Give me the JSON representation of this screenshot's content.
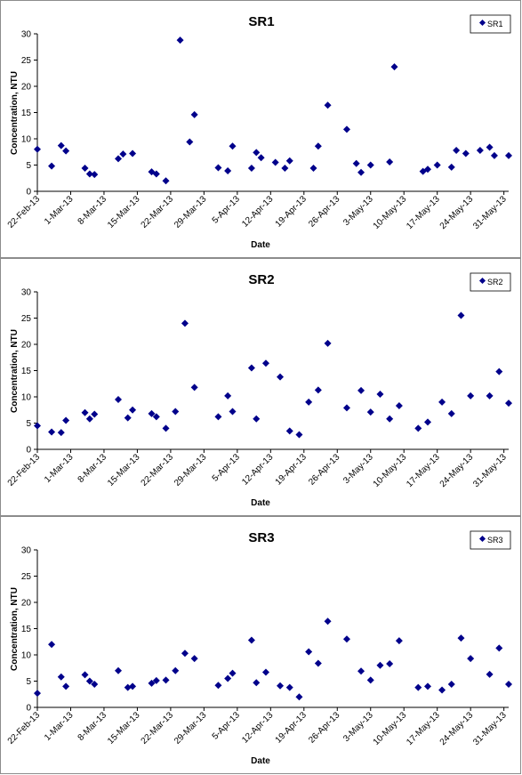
{
  "colors": {
    "marker": "#00008b",
    "axis": "#000000",
    "border": "#8c8c8c"
  },
  "chart_data": [
    {
      "type": "scatter",
      "title": "SR1",
      "xlabel": "Date",
      "ylabel": "Concentration, NTU",
      "ylim": [
        0,
        30
      ],
      "yticks": [
        "0",
        "5",
        "10",
        "15",
        "20",
        "25",
        "30"
      ],
      "xticks": [
        "22-Feb-13",
        "1-Mar-13",
        "8-Mar-13",
        "15-Mar-13",
        "22-Mar-13",
        "29-Mar-13",
        "5-Apr-13",
        "12-Apr-13",
        "19-Apr-13",
        "26-Apr-13",
        "3-May-13",
        "10-May-13",
        "17-May-13",
        "24-May-13",
        "31-May-13"
      ],
      "xlim": [
        "2013-02-22",
        "2013-06-01"
      ],
      "legend": "top-right",
      "grid": false,
      "series": [
        {
          "name": "SR1",
          "x": [
            "2013-02-22",
            "2013-02-25",
            "2013-02-27",
            "2013-02-28",
            "2013-03-04",
            "2013-03-05",
            "2013-03-06",
            "2013-03-11",
            "2013-03-12",
            "2013-03-14",
            "2013-03-18",
            "2013-03-19",
            "2013-03-21",
            "2013-03-24",
            "2013-03-26",
            "2013-03-27",
            "2013-04-01",
            "2013-04-03",
            "2013-04-04",
            "2013-04-08",
            "2013-04-09",
            "2013-04-10",
            "2013-04-13",
            "2013-04-15",
            "2013-04-16",
            "2013-04-21",
            "2013-04-22",
            "2013-04-24",
            "2013-04-28",
            "2013-04-30",
            "2013-05-01",
            "2013-05-03",
            "2013-05-07",
            "2013-05-08",
            "2013-05-14",
            "2013-05-15",
            "2013-05-17",
            "2013-05-20",
            "2013-05-21",
            "2013-05-23",
            "2013-05-26",
            "2013-05-28",
            "2013-05-29",
            "2013-06-01"
          ],
          "y": [
            8,
            4.8,
            8.7,
            7.7,
            4.4,
            3.3,
            3.2,
            6.2,
            7.1,
            7.2,
            3.7,
            3.3,
            2,
            28.8,
            9.4,
            14.6,
            4.5,
            3.9,
            8.6,
            4.4,
            7.4,
            6.4,
            5.5,
            4.4,
            5.8,
            4.4,
            8.6,
            16.4,
            11.8,
            5.3,
            3.6,
            5,
            5.6,
            23.7,
            3.8,
            4.2,
            5,
            4.6,
            7.8,
            7.2,
            7.8,
            8.4,
            6.8,
            6.8
          ]
        }
      ]
    },
    {
      "type": "scatter",
      "title": "SR2",
      "xlabel": "Date",
      "ylabel": "Concentration, NTU",
      "ylim": [
        0,
        30
      ],
      "yticks": [
        "0",
        "5",
        "10",
        "15",
        "20",
        "25",
        "30"
      ],
      "xticks": [
        "22-Feb-13",
        "1-Mar-13",
        "8-Mar-13",
        "15-Mar-13",
        "22-Mar-13",
        "29-Mar-13",
        "5-Apr-13",
        "12-Apr-13",
        "19-Apr-13",
        "26-Apr-13",
        "3-May-13",
        "10-May-13",
        "17-May-13",
        "24-May-13",
        "31-May-13"
      ],
      "xlim": [
        "2013-02-22",
        "2013-06-01"
      ],
      "legend": "top-right",
      "grid": false,
      "series": [
        {
          "name": "SR2",
          "x": [
            "2013-02-22",
            "2013-02-25",
            "2013-02-27",
            "2013-02-28",
            "2013-03-04",
            "2013-03-05",
            "2013-03-06",
            "2013-03-11",
            "2013-03-13",
            "2013-03-14",
            "2013-03-18",
            "2013-03-19",
            "2013-03-21",
            "2013-03-23",
            "2013-03-25",
            "2013-03-27",
            "2013-04-01",
            "2013-04-03",
            "2013-04-04",
            "2013-04-08",
            "2013-04-09",
            "2013-04-11",
            "2013-04-14",
            "2013-04-16",
            "2013-04-18",
            "2013-04-20",
            "2013-04-22",
            "2013-04-24",
            "2013-04-28",
            "2013-05-01",
            "2013-05-03",
            "2013-05-05",
            "2013-05-07",
            "2013-05-09",
            "2013-05-13",
            "2013-05-15",
            "2013-05-18",
            "2013-05-20",
            "2013-05-22",
            "2013-05-24",
            "2013-05-28",
            "2013-05-30",
            "2013-06-01"
          ],
          "y": [
            4.5,
            3.3,
            3.2,
            5.5,
            7,
            5.8,
            6.7,
            9.5,
            6,
            7.5,
            6.8,
            6.2,
            4,
            7.2,
            24,
            11.8,
            6.2,
            10.2,
            7.2,
            15.5,
            5.8,
            16.4,
            13.8,
            3.5,
            2.8,
            9,
            11.3,
            20.2,
            7.9,
            11.2,
            7.1,
            10.5,
            5.8,
            8.3,
            4,
            5.2,
            9,
            6.8,
            25.5,
            10.2,
            10.2,
            14.8,
            8.8
          ]
        }
      ]
    },
    {
      "type": "scatter",
      "title": "SR3",
      "xlabel": "Date",
      "ylabel": "Concentration, NTU",
      "ylim": [
        0,
        30
      ],
      "yticks": [
        "0",
        "5",
        "10",
        "15",
        "20",
        "25",
        "30"
      ],
      "xticks": [
        "22-Feb-13",
        "1-Mar-13",
        "8-Mar-13",
        "15-Mar-13",
        "22-Mar-13",
        "29-Mar-13",
        "5-Apr-13",
        "12-Apr-13",
        "19-Apr-13",
        "26-Apr-13",
        "3-May-13",
        "10-May-13",
        "17-May-13",
        "24-May-13",
        "31-May-13"
      ],
      "xlim": [
        "2013-02-22",
        "2013-06-01"
      ],
      "legend": "top-right",
      "grid": false,
      "series": [
        {
          "name": "SR3",
          "x": [
            "2013-02-22",
            "2013-02-25",
            "2013-02-27",
            "2013-02-28",
            "2013-03-04",
            "2013-03-05",
            "2013-03-06",
            "2013-03-11",
            "2013-03-13",
            "2013-03-14",
            "2013-03-18",
            "2013-03-19",
            "2013-03-21",
            "2013-03-23",
            "2013-03-25",
            "2013-03-27",
            "2013-04-01",
            "2013-04-03",
            "2013-04-04",
            "2013-04-08",
            "2013-04-09",
            "2013-04-11",
            "2013-04-14",
            "2013-04-16",
            "2013-04-18",
            "2013-04-20",
            "2013-04-22",
            "2013-04-24",
            "2013-04-28",
            "2013-05-01",
            "2013-05-03",
            "2013-05-05",
            "2013-05-07",
            "2013-05-09",
            "2013-05-13",
            "2013-05-15",
            "2013-05-18",
            "2013-05-20",
            "2013-05-22",
            "2013-05-24",
            "2013-05-28",
            "2013-05-30",
            "2013-06-01"
          ],
          "y": [
            2.7,
            12,
            5.8,
            4,
            6.2,
            5,
            4.4,
            7,
            3.8,
            4,
            4.6,
            5.1,
            5.2,
            7,
            10.3,
            9.3,
            4.2,
            5.5,
            6.5,
            12.8,
            4.7,
            6.7,
            4.1,
            3.8,
            2,
            10.6,
            8.4,
            16.4,
            13,
            6.9,
            5.2,
            8,
            8.3,
            12.7,
            3.8,
            4,
            3.3,
            4.4,
            13.2,
            9.3,
            6.3,
            11.3,
            4.4
          ]
        }
      ]
    }
  ]
}
